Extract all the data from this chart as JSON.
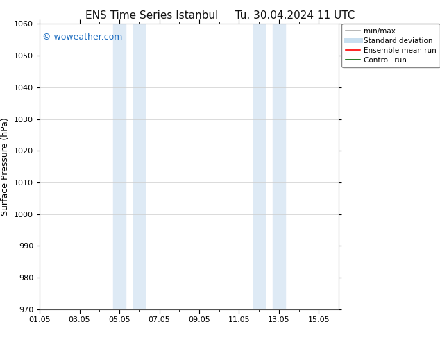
{
  "title_left": "ENS Time Series Istanbul",
  "title_right": "Tu. 30.04.2024 11 UTC",
  "ylabel": "Surface Pressure (hPa)",
  "ylim": [
    970,
    1060
  ],
  "yticks": [
    970,
    980,
    990,
    1000,
    1010,
    1020,
    1030,
    1040,
    1050,
    1060
  ],
  "xtick_labels": [
    "01.05",
    "03.05",
    "05.05",
    "07.05",
    "09.05",
    "11.05",
    "13.05",
    "15.05"
  ],
  "xtick_positions": [
    0,
    2,
    4,
    6,
    8,
    10,
    12,
    14
  ],
  "xlim": [
    0,
    15
  ],
  "shaded_bands": [
    {
      "x_start": 3.7,
      "x_end": 4.3
    },
    {
      "x_start": 4.7,
      "x_end": 5.3
    },
    {
      "x_start": 10.7,
      "x_end": 11.3
    },
    {
      "x_start": 11.7,
      "x_end": 12.3
    }
  ],
  "shaded_color": "#deeaf5",
  "bg_color": "#ffffff",
  "watermark_text": "© woweather.com",
  "watermark_color": "#1a6bbf",
  "watermark_fontsize": 9,
  "legend_items": [
    {
      "label": "min/max",
      "color": "#aaaaaa",
      "lw": 1.2
    },
    {
      "label": "Standard deviation",
      "color": "#c8dff0",
      "lw": 5
    },
    {
      "label": "Ensemble mean run",
      "color": "#ff0000",
      "lw": 1.2
    },
    {
      "label": "Controll run",
      "color": "#006600",
      "lw": 1.2
    }
  ],
  "grid_color": "#cccccc",
  "grid_lw": 0.5,
  "title_fontsize": 11,
  "ylabel_fontsize": 9,
  "tick_fontsize": 8,
  "legend_fontsize": 7.5,
  "minor_xtick_positions": [
    1,
    2,
    3,
    4,
    5,
    6,
    7,
    8,
    9,
    10,
    11,
    12,
    13,
    14
  ]
}
